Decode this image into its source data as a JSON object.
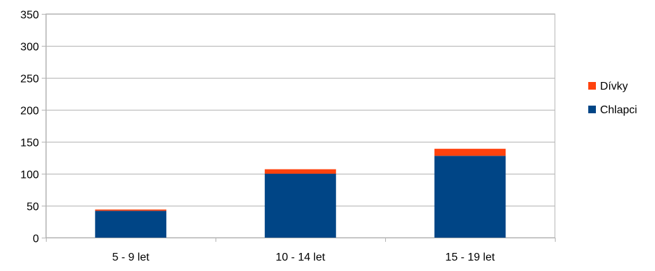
{
  "chart_data": {
    "type": "bar",
    "stacked": true,
    "categories": [
      "5 - 9 let",
      "10 - 14 let",
      "15 - 19 let"
    ],
    "series": [
      {
        "name": "Chlapci",
        "values": [
          42,
          100,
          128
        ],
        "color": "#004586"
      },
      {
        "name": "Dívky",
        "values": [
          2,
          7,
          11
        ],
        "color": "#ff420e"
      }
    ],
    "legend_order": [
      "Dívky",
      "Chlapci"
    ],
    "ylim": [
      0,
      350
    ],
    "yticks": [
      0,
      50,
      100,
      150,
      200,
      250,
      300,
      350
    ],
    "grid": true,
    "legend_position": "right",
    "title": "",
    "xlabel": "",
    "ylabel": ""
  }
}
